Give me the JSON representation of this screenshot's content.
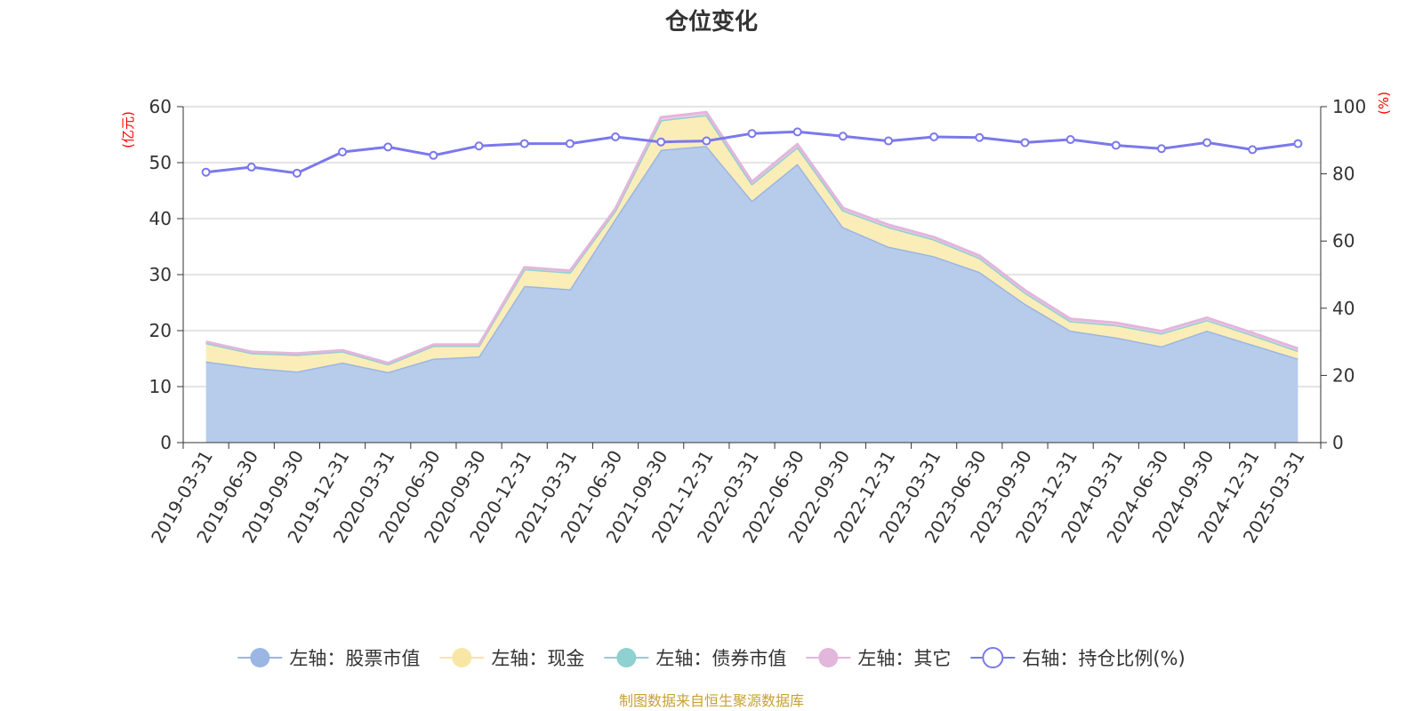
{
  "chart_data": {
    "type": "area",
    "title": "仓位变化",
    "left_unit": "(亿元)",
    "right_unit": "(%)",
    "categories": [
      "2019-03-31",
      "2019-06-30",
      "2019-09-30",
      "2019-12-31",
      "2020-03-31",
      "2020-06-30",
      "2020-09-30",
      "2020-12-31",
      "2021-03-31",
      "2021-06-30",
      "2021-09-30",
      "2021-12-31",
      "2022-03-31",
      "2022-06-30",
      "2022-09-30",
      "2022-12-31",
      "2023-03-31",
      "2023-06-30",
      "2023-09-30",
      "2023-12-31",
      "2024-03-31",
      "2024-06-30",
      "2024-09-30",
      "2024-12-31",
      "2025-03-31"
    ],
    "ylim_left": [
      0,
      60
    ],
    "yticks_left": [
      0,
      10,
      20,
      30,
      40,
      50,
      60
    ],
    "ylim_right": [
      0,
      100
    ],
    "yticks_right": [
      0,
      20,
      40,
      60,
      80,
      100
    ],
    "grid": true,
    "legend_position": "bottom",
    "series": [
      {
        "name": "左轴：股票市值",
        "axis": "left",
        "type": "area",
        "color": "#9bb6e2",
        "fill": "#b7cceb",
        "values": [
          14.5,
          13.4,
          12.7,
          14.3,
          12.6,
          15.0,
          15.4,
          28.0,
          27.4,
          40.0,
          52.3,
          53.0,
          43.2,
          49.8,
          38.5,
          35.0,
          33.3,
          30.5,
          24.8,
          20.0,
          18.8,
          17.2,
          20.0,
          17.5,
          15.0
        ]
      },
      {
        "name": "左轴：现金",
        "axis": "left",
        "type": "area",
        "color": "#f8e6a4",
        "fill": "#fbedb8",
        "values": [
          3.3,
          2.6,
          3.0,
          2.0,
          1.4,
          2.3,
          1.9,
          3.0,
          3.0,
          1.5,
          5.3,
          5.5,
          3.0,
          3.0,
          3.0,
          3.5,
          3.0,
          2.5,
          2.0,
          1.7,
          2.2,
          2.3,
          1.9,
          1.7,
          1.4
        ]
      },
      {
        "name": "左轴：债券市值",
        "axis": "left",
        "type": "area",
        "color": "#8fd0d0",
        "fill": "#b7e3e3",
        "values": [
          0,
          0,
          0,
          0,
          0,
          0,
          0,
          0,
          0,
          0,
          0,
          0,
          0,
          0,
          0,
          0,
          0,
          0,
          0,
          0,
          0,
          0,
          0,
          0,
          0
        ]
      },
      {
        "name": "左轴：其它",
        "axis": "left",
        "type": "area",
        "color": "#e3b6dc",
        "fill": "#edcbe8",
        "values": [
          0.2,
          0.2,
          0.2,
          0.2,
          0.2,
          0.2,
          0.2,
          0.3,
          0.3,
          0.3,
          0.5,
          0.5,
          0.4,
          0.5,
          0.4,
          0.4,
          0.4,
          0.4,
          0.4,
          0.4,
          0.4,
          0.4,
          0.4,
          0.4,
          0.4
        ]
      },
      {
        "name": "右轴：持仓比例(%)",
        "axis": "right",
        "type": "line",
        "color": "#7b78ec",
        "values": [
          80.5,
          82.0,
          80.2,
          86.5,
          88.0,
          85.5,
          88.3,
          89.0,
          89.0,
          91.0,
          89.5,
          89.8,
          92.0,
          92.5,
          91.2,
          89.8,
          91.0,
          90.8,
          89.3,
          90.2,
          88.5,
          87.5,
          89.3,
          87.2,
          89.0
        ]
      }
    ]
  },
  "legend": [
    {
      "label": "左轴：股票市值",
      "marker": "filled-circle",
      "color": "#9bb6e2"
    },
    {
      "label": "左轴：现金",
      "marker": "filled-circle",
      "color": "#f8e6a4"
    },
    {
      "label": "左轴：债券市值",
      "marker": "filled-circle",
      "color": "#8fd0d0"
    },
    {
      "label": "左轴：其它",
      "marker": "filled-circle",
      "color": "#e3b6dc"
    },
    {
      "label": "右轴：持仓比例(%)",
      "marker": "hollow-circle",
      "color": "#7b78ec"
    }
  ],
  "source": "制图数据来自恒生聚源数据库"
}
